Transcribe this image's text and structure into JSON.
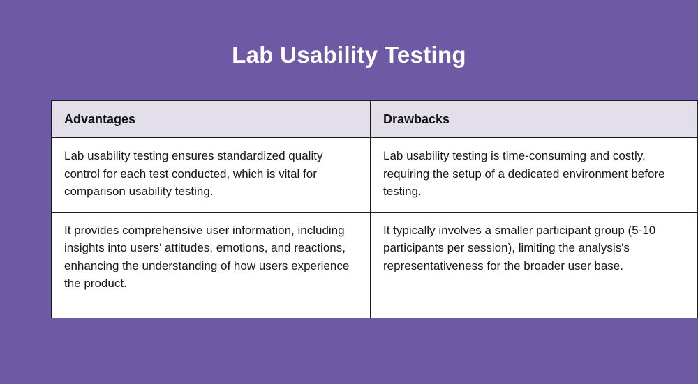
{
  "page": {
    "background_color": "#6d59a4",
    "header_bg_color": "#e2dfeb",
    "border_color": "#1c1c1e",
    "title_color": "#ffffff"
  },
  "title": "Lab Usability Testing",
  "table": {
    "columns": [
      "Advantages",
      "Drawbacks"
    ],
    "rows": [
      {
        "advantage": "Lab usability testing ensures standardized quality control for each test conducted, which is vital for comparison usability testing.",
        "drawback": "Lab usability testing is time-consuming and costly, requiring the setup of a dedicated environment before testing."
      },
      {
        "advantage": "It provides comprehensive user information, including insights into users' attitudes, emotions, and reactions, enhancing the understanding of how users experience the product.",
        "drawback": "It typically involves a smaller participant group (5-10 participants per session), limiting the analysis's representativeness for the broader user base."
      }
    ]
  }
}
